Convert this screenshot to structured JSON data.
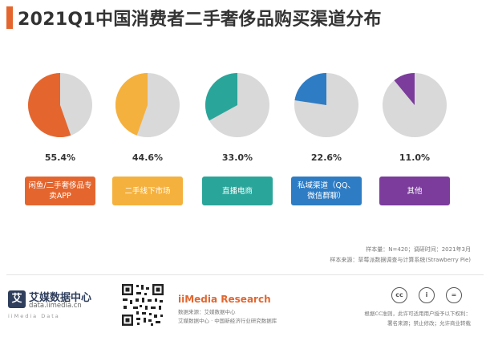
{
  "header": {
    "title": "2021Q1中国消费者二手奢侈品购买渠道分布",
    "accent_color": "#e4662e"
  },
  "chart_data": {
    "type": "pie",
    "title": "2021Q1中国消费者二手奢侈品购买渠道分布",
    "items": [
      {
        "label": "闲鱼/二手奢侈品专卖APP",
        "value": 55.4,
        "value_label": "55.4%",
        "color": "#e4662e"
      },
      {
        "label": "二手线下市场",
        "value": 44.6,
        "value_label": "44.6%",
        "color": "#f5b13d"
      },
      {
        "label": "直播电商",
        "value": 33.0,
        "value_label": "33.0%",
        "color": "#2aa59a"
      },
      {
        "label": "私域渠道（QQ、微信群聊）",
        "value": 22.6,
        "value_label": "22.6%",
        "color": "#2e7cc4"
      },
      {
        "label": "其他",
        "value": 11.0,
        "value_label": "11.0%",
        "color": "#7b3c9c"
      }
    ],
    "remainder_color": "#d9d9d9"
  },
  "notes": {
    "sample": "样本量：N=420；调研时间：2021年3月",
    "source": "样本来源：草莓派数据调查与计算系统(Strawberry Pie)"
  },
  "footer": {
    "logo_mark": "艾",
    "logo_name": "艾媒数据中心",
    "logo_url": "data.iimedia.cn",
    "logo_slogan": "iiMedia Data",
    "brand": "iiMedia Research",
    "source_line1": "数据来源：艾媒数据中心",
    "source_line2": "艾媒数据中心 · 中国新经济行业研究数据库",
    "license_icons": [
      "cc",
      "i",
      "="
    ],
    "license_line1": "根据CC准则，此许可适用用户授予以下权利：",
    "license_line2": "署名来源；禁止修改；允许商业转载"
  }
}
